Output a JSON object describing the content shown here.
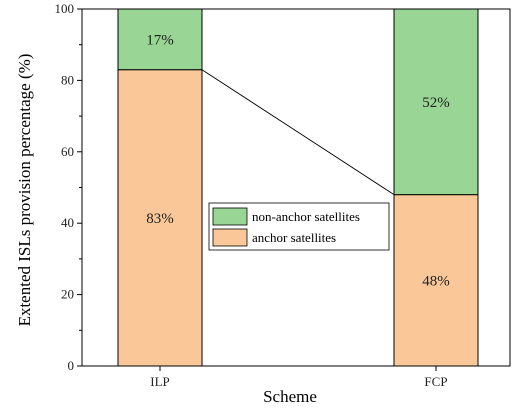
{
  "chart_data": {
    "type": "bar",
    "stacked": true,
    "categories": [
      "ILP",
      "FCP"
    ],
    "series": [
      {
        "name": "anchor satellites",
        "values": [
          83,
          48
        ],
        "color": "#FAC898",
        "labels": [
          "83%",
          "48%"
        ]
      },
      {
        "name": "non-anchor satellites",
        "values": [
          17,
          52
        ],
        "color": "#99D594",
        "labels": [
          "17%",
          "52%"
        ]
      }
    ],
    "xlabel": "Scheme",
    "ylabel": "Extented ISLs provision percentage (%)",
    "ylim": [
      0,
      100
    ],
    "yticks": [
      0,
      20,
      40,
      60,
      80,
      100
    ],
    "grid": false,
    "legend": {
      "placement": "center",
      "entries": [
        "non-anchor satellites",
        "anchor satellites"
      ]
    },
    "connector_line": true
  }
}
